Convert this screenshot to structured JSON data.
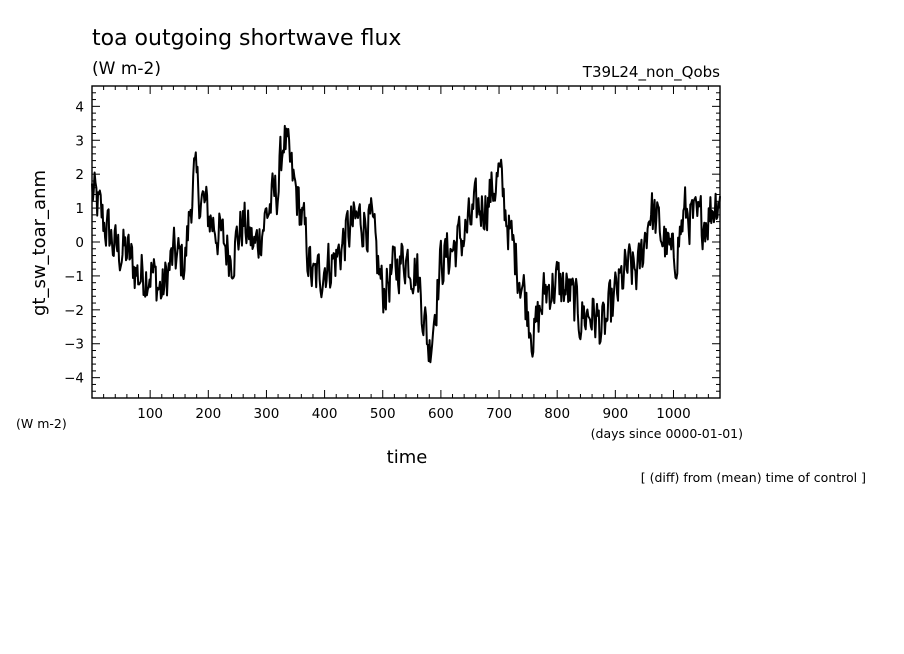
{
  "chart_data": {
    "type": "line",
    "title": "toa outgoing shortwave flux",
    "units": "(W m-2)",
    "run_label": "T39L24_non_Qobs",
    "ylabel": "gt_sw_toar_anm",
    "y_units_label": "(W m-2)",
    "xlabel": "time",
    "x_units_label": "(days since 0000-01-01)",
    "footnote": "[ (diff) from (mean) time of control ]",
    "xlim": [
      0,
      1080
    ],
    "ylim": [
      -4.6,
      4.6
    ],
    "x_ticks": [
      100,
      200,
      300,
      400,
      500,
      600,
      700,
      800,
      900,
      1000
    ],
    "y_ticks": [
      -4,
      -3,
      -2,
      -1,
      0,
      1,
      2,
      3,
      4
    ],
    "grid": false,
    "line_color": "#000000",
    "series": [
      {
        "x": [
          0,
          20,
          40,
          60,
          80,
          100,
          120,
          140,
          160,
          175,
          180,
          200,
          220,
          240,
          260,
          280,
          300,
          320,
          330,
          340,
          360,
          380,
          400,
          420,
          440,
          460,
          480,
          500,
          520,
          540,
          560,
          580,
          600,
          620,
          640,
          660,
          680,
          700,
          720,
          740,
          760,
          780,
          800,
          820,
          840,
          860,
          880,
          900,
          920,
          940,
          960,
          980,
          1000,
          1020,
          1040,
          1060,
          1080
        ],
        "values": [
          1.5,
          0.6,
          -0.2,
          -0.3,
          -1.0,
          -0.8,
          -1.5,
          -0.4,
          -0.6,
          2.0,
          1.6,
          0.8,
          0.2,
          -0.4,
          0.6,
          -0.2,
          0.8,
          1.6,
          3.2,
          2.2,
          0.8,
          -1.2,
          -0.7,
          -0.5,
          0.3,
          0.7,
          0.5,
          -1.5,
          -0.8,
          -0.4,
          -0.9,
          -3.2,
          -0.6,
          -0.2,
          0.2,
          0.9,
          1.2,
          2.0,
          0.1,
          -1.2,
          -2.8,
          -1.4,
          -1.2,
          -1.5,
          -2.2,
          -2.1,
          -2.6,
          -1.6,
          -0.8,
          -0.9,
          1.0,
          0.2,
          -0.6,
          0.9,
          0.5,
          0.8,
          1.5
        ]
      }
    ],
    "noise_amplitude": 1.1
  }
}
